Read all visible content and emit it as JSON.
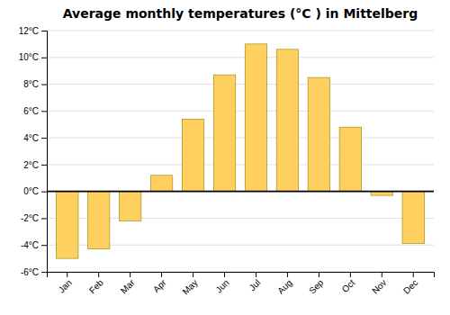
{
  "chart_data": {
    "type": "bar",
    "title": "Average monthly temperatures (°C ) in Mittelberg",
    "categories": [
      "Jan",
      "Feb",
      "Mar",
      "Apr",
      "May",
      "Jun",
      "Jul",
      "Aug",
      "Sep",
      "Oct",
      "Nov",
      "Dec"
    ],
    "values": [
      -5.0,
      -4.3,
      -2.2,
      1.2,
      5.4,
      8.7,
      11.0,
      10.6,
      8.5,
      4.8,
      -0.3,
      -3.9
    ],
    "color": "#FFD060",
    "ylim": [
      -6,
      12
    ],
    "yticks": [
      {
        "value": -6,
        "label": "-6°C"
      },
      {
        "value": -4,
        "label": "-4°C"
      },
      {
        "value": -2,
        "label": "-2°C"
      },
      {
        "value": 0,
        "label": "0°C"
      },
      {
        "value": 2,
        "label": "2°C"
      },
      {
        "value": 4,
        "label": "4°C"
      },
      {
        "value": 6,
        "label": "6°C"
      },
      {
        "value": 8,
        "label": "8°C"
      },
      {
        "value": 10,
        "label": "10°C"
      },
      {
        "value": 12,
        "label": "12°C"
      }
    ],
    "grid": true
  }
}
